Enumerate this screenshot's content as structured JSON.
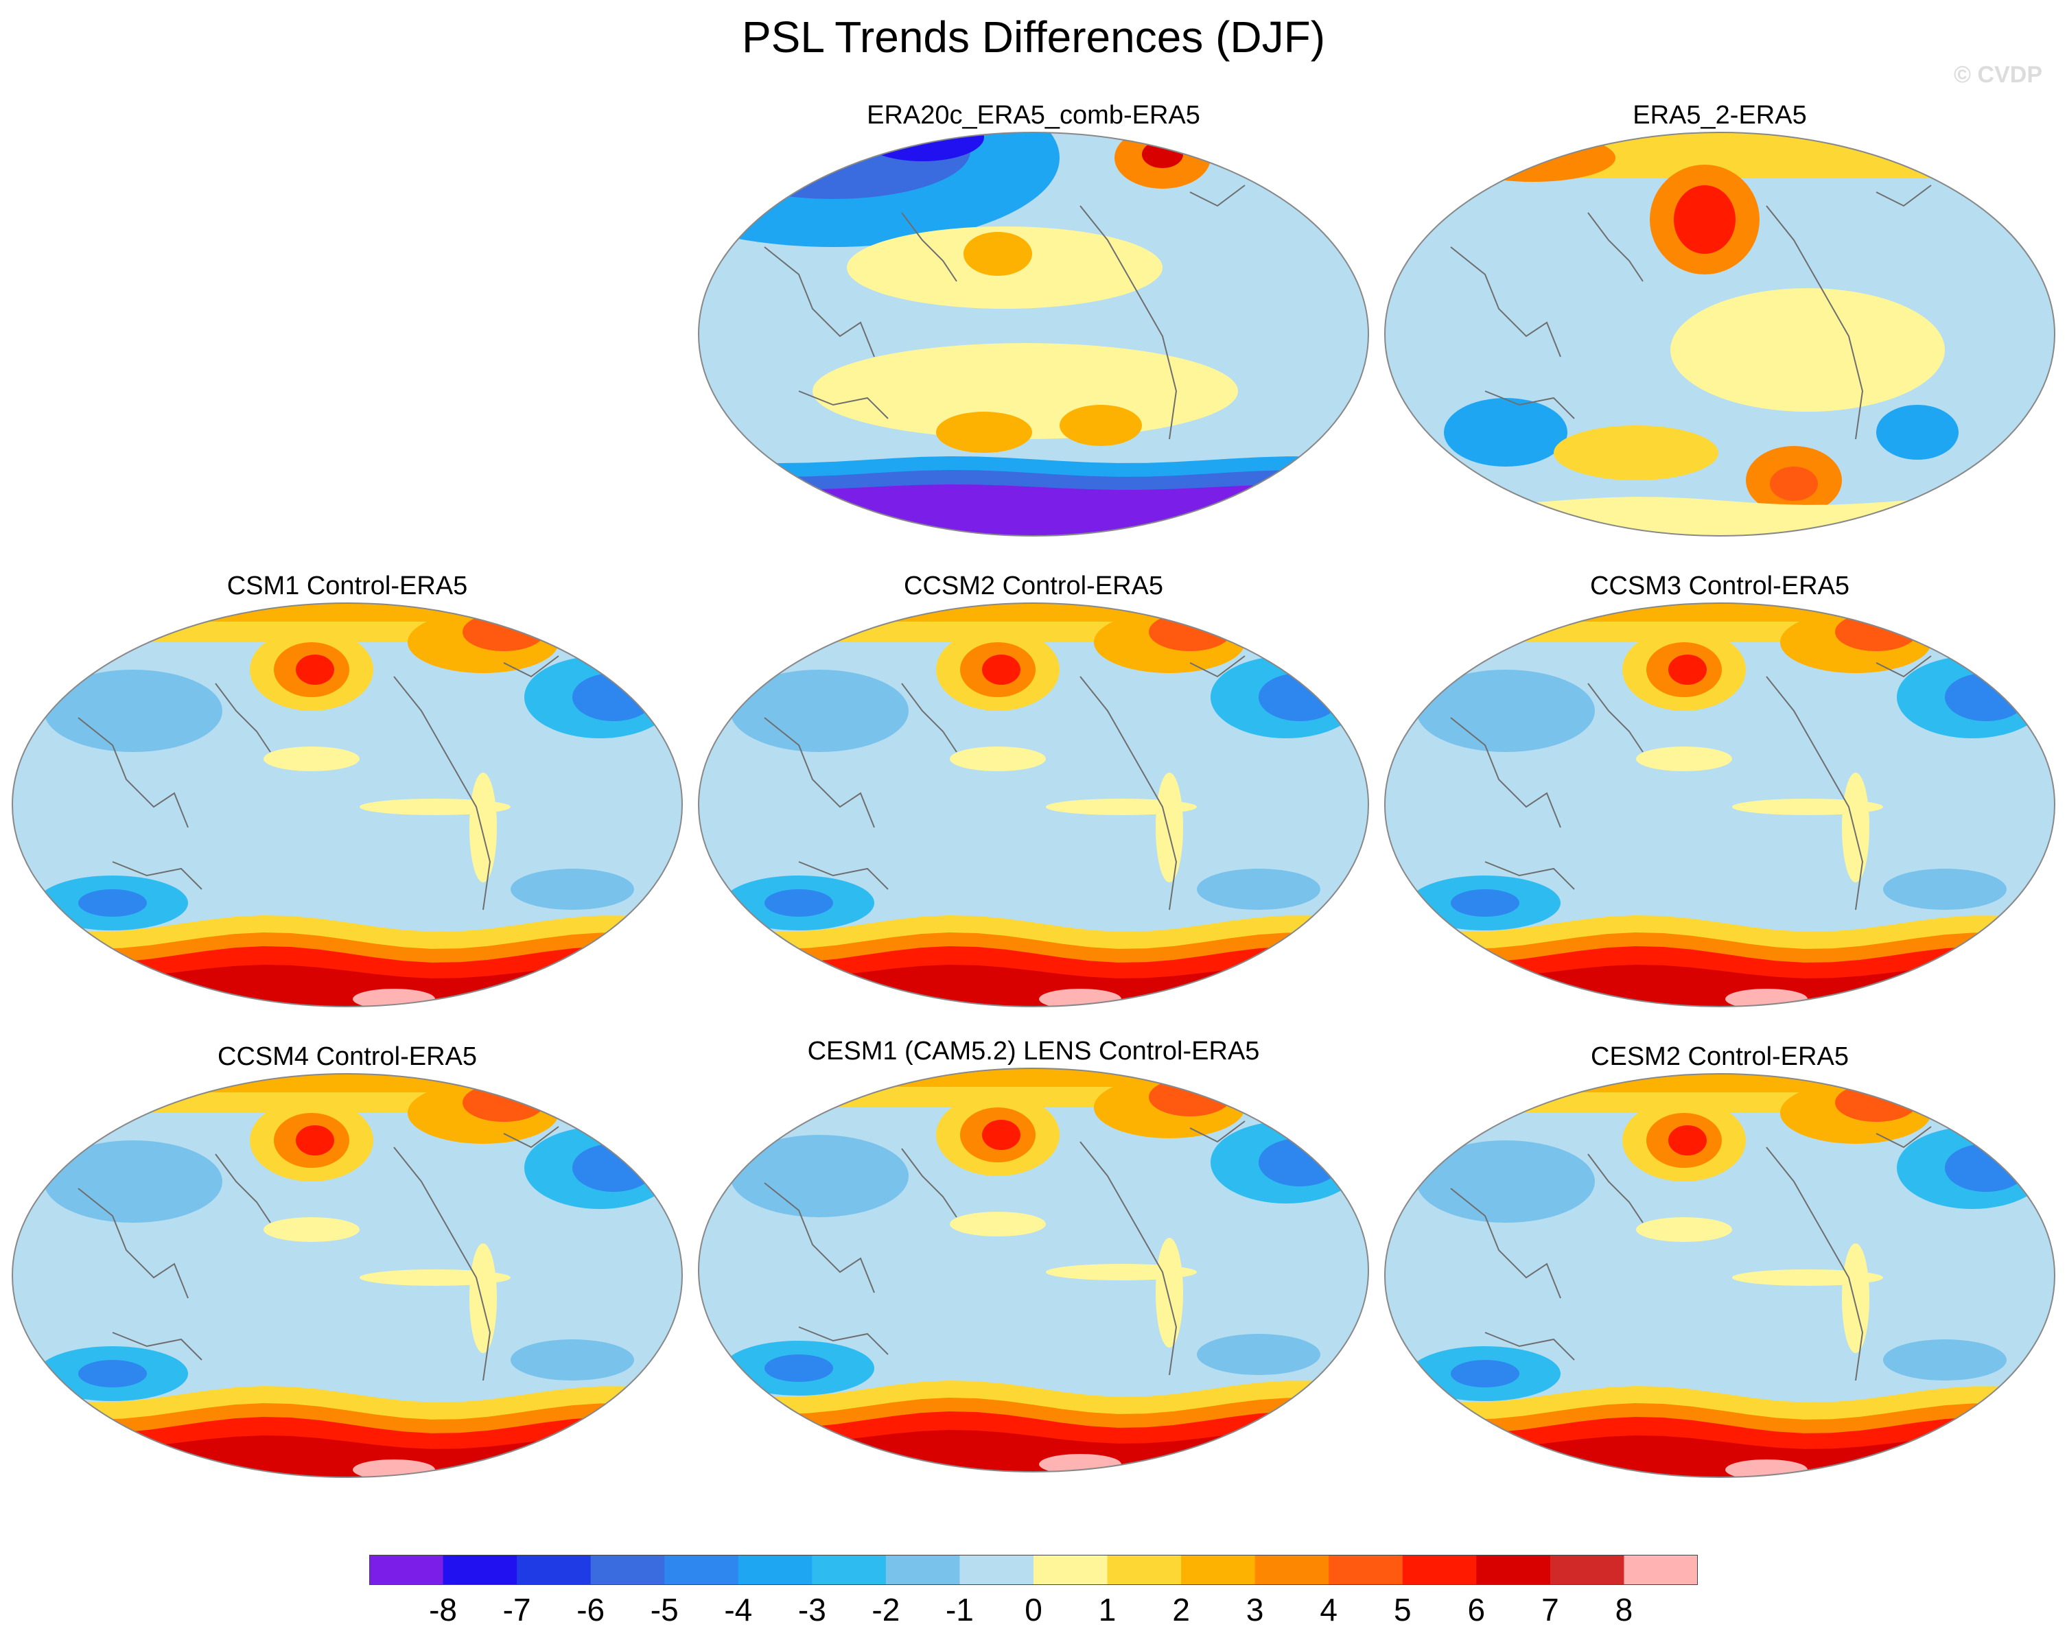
{
  "figure": {
    "title": "PSL Trends Differences (DJF)",
    "watermark": "© CVDP"
  },
  "panels": [
    {
      "id": "era20c",
      "title": "ERA20c_ERA5_comb-ERA5",
      "pattern": "era20c"
    },
    {
      "id": "era5_2",
      "title": "ERA5_2-ERA5",
      "pattern": "era5_2"
    },
    {
      "id": "csm1",
      "title": "CSM1 Control-ERA5",
      "pattern": "model"
    },
    {
      "id": "ccsm2",
      "title": "CCSM2 Control-ERA5",
      "pattern": "model"
    },
    {
      "id": "ccsm3",
      "title": "CCSM3 Control-ERA5",
      "pattern": "model"
    },
    {
      "id": "ccsm4",
      "title": "CCSM4 Control-ERA5",
      "pattern": "model"
    },
    {
      "id": "cesm1",
      "title": "CESM1 (CAM5.2) LENS Control-ERA5",
      "pattern": "model"
    },
    {
      "id": "cesm2",
      "title": "CESM2 Control-ERA5",
      "pattern": "model"
    }
  ],
  "colorbar": {
    "labels": [
      "-8",
      "-7",
      "-6",
      "-5",
      "-4",
      "-3",
      "-2",
      "-1",
      "0",
      "1",
      "2",
      "3",
      "4",
      "5",
      "6",
      "7",
      "8"
    ],
    "colors": [
      "#7b1ee8",
      "#2111f0",
      "#1f3be6",
      "#3a6bdf",
      "#2e86ef",
      "#1ea6f2",
      "#2ebbf0",
      "#79c2ec",
      "#b7ddf1",
      "#fff69a",
      "#fdd734",
      "#fdb100",
      "#fe8700",
      "#ff5a10",
      "#ff1a00",
      "#d90000",
      "#d12828",
      "#ffb3b3"
    ]
  }
}
